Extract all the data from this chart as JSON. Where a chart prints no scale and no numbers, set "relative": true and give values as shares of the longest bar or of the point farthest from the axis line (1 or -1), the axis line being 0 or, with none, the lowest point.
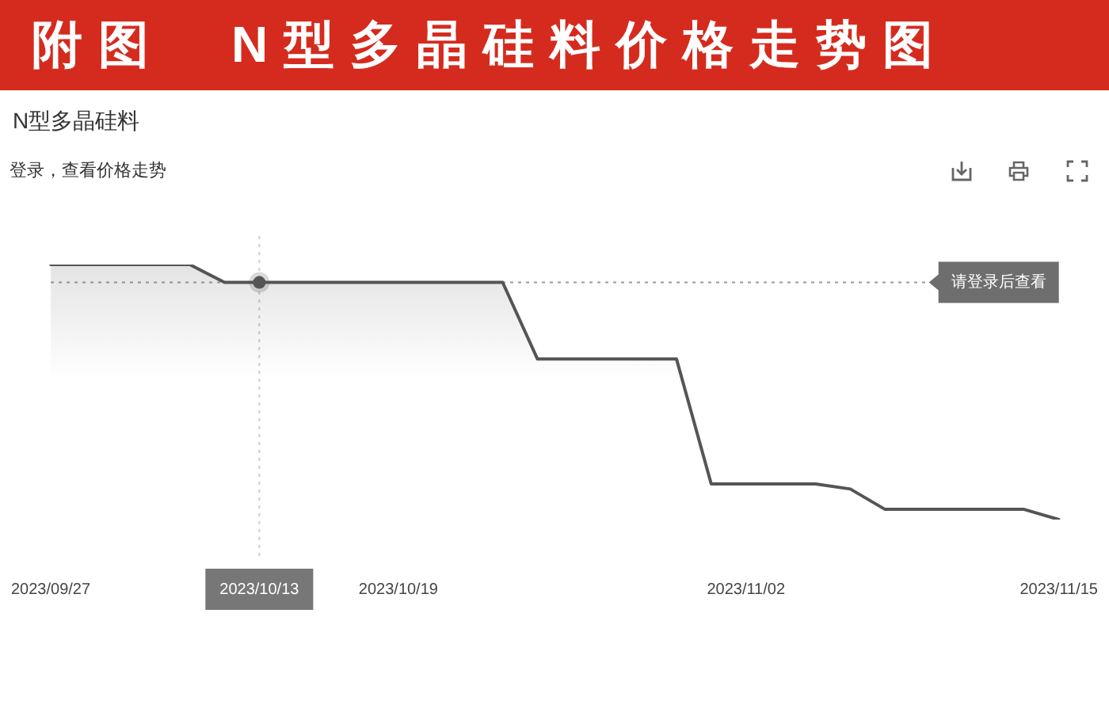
{
  "chart_data": {
    "type": "area",
    "title": "附图　N型多晶硅料价格走势图",
    "subtitle": "N型多晶硅料",
    "annotations": [
      "登录，查看价格走势"
    ],
    "categories": [
      "2023/09/27",
      null,
      null,
      null,
      null,
      null,
      "2023/10/13",
      null,
      null,
      null,
      "2023/10/19",
      null,
      null,
      null,
      null,
      null,
      null,
      null,
      null,
      null,
      "2023/11/02",
      null,
      null,
      null,
      null,
      null,
      null,
      null,
      null,
      "2023/11/15"
    ],
    "relative": true,
    "series": [
      {
        "color": "#555555",
        "values": [
          1,
          1,
          1,
          1,
          1,
          0.93,
          0.93,
          0.93,
          0.93,
          0.93,
          0.93,
          0.93,
          0.93,
          0.93,
          0.63,
          0.63,
          0.63,
          0.63,
          0.63,
          0.14,
          0.14,
          0.14,
          0.14,
          0.12,
          0.04,
          0.04,
          0.04,
          0.04,
          0.04,
          0
        ]
      },
      {
        "type": "scatter",
        "x": [
          "2023/10/13"
        ],
        "values": [
          0.93
        ],
        "color": "#555555",
        "marker": "circle"
      }
    ],
    "ref_lines": [
      {
        "axis": "x",
        "value": "2023/10/13",
        "color": "#cccccc",
        "line_style": "dotted"
      },
      {
        "axis": "y",
        "value": 0.93,
        "label": "请登录后查看",
        "color": "#999999",
        "line_style": "dotted"
      }
    ]
  }
}
